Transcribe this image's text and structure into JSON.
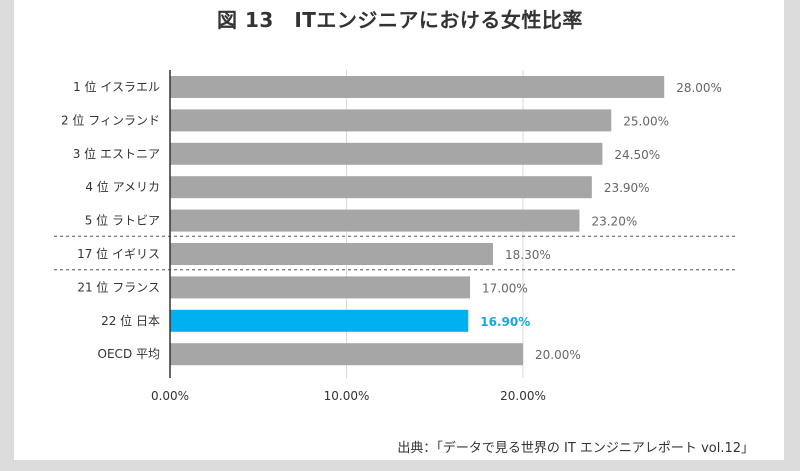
{
  "chart_data": {
    "type": "bar",
    "orientation": "horizontal",
    "title": "図 13　ITエンジニアにおける女性比率",
    "source": "出典：「データで見る世界の IT エンジニアレポート vol.12」",
    "categories": [
      "1 位 イスラエル",
      "2 位 フィンランド",
      "3 位 エストニア",
      "4 位 アメリカ",
      "5 位 ラトビア",
      "17 位 イギリス",
      "21 位 フランス",
      "22 位 日本",
      "OECD 平均"
    ],
    "values": [
      28.0,
      25.0,
      24.5,
      23.9,
      23.2,
      18.3,
      17.0,
      16.9,
      20.0
    ],
    "value_labels": [
      "28.00%",
      "25.00%",
      "24.50%",
      "23.90%",
      "23.20%",
      "18.30%",
      "17.00%",
      "16.90%",
      "20.00%"
    ],
    "highlight_index": 7,
    "xlim": [
      0,
      30
    ],
    "xticks": [
      0,
      10,
      20
    ],
    "xtick_labels": [
      "0.00%",
      "10.00%",
      "20.00%"
    ],
    "separators_after_index": [
      4,
      5
    ],
    "grid": true,
    "colors": {
      "bar": "#a6a6a6",
      "highlight": "#00b0f0",
      "highlight_text": "#1aa7df",
      "grid": "#d9d9d9"
    }
  }
}
